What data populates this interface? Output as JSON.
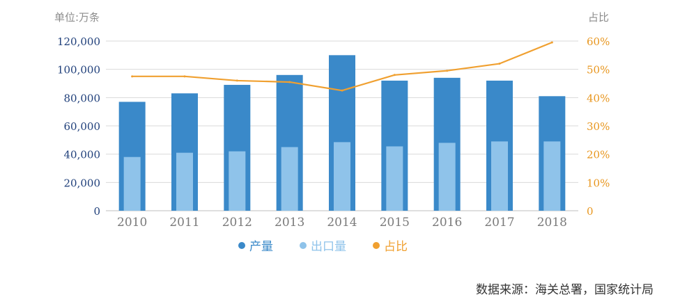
{
  "chart_data": {
    "type": "bar",
    "categories": [
      "2010",
      "2011",
      "2012",
      "2013",
      "2014",
      "2015",
      "2016",
      "2017",
      "2018"
    ],
    "series": [
      {
        "name": "产量",
        "type": "bar",
        "axis": "left",
        "color": "#3a89c9",
        "values": [
          77000,
          83000,
          89000,
          96000,
          110000,
          92000,
          94000,
          92000,
          81000
        ]
      },
      {
        "name": "出口量",
        "type": "bar",
        "axis": "left",
        "color": "#8fc3ea",
        "values": [
          38000,
          41000,
          42000,
          45000,
          48500,
          45500,
          48000,
          49000,
          49000
        ]
      },
      {
        "name": "占比",
        "type": "line",
        "axis": "right",
        "color": "#f0a030",
        "values": [
          47.5,
          47.5,
          46,
          45.5,
          42.5,
          48,
          49.5,
          52,
          59.5
        ]
      }
    ],
    "left_axis": {
      "unit_label": "单位:万条",
      "ylim": [
        0,
        120000
      ],
      "ticks": [
        "0",
        "20,000",
        "40,000",
        "60,000",
        "80,000",
        "100,000",
        "120,000"
      ],
      "tick_values": [
        0,
        20000,
        40000,
        60000,
        80000,
        100000,
        120000
      ]
    },
    "right_axis": {
      "unit_label": "占比",
      "ylim": [
        0,
        60
      ],
      "ticks": [
        "0",
        "10%",
        "20%",
        "30%",
        "40%",
        "50%",
        "60%"
      ],
      "tick_values": [
        0,
        10,
        20,
        30,
        40,
        50,
        60
      ]
    },
    "grid": true,
    "legend_position": "bottom-center"
  },
  "source_text": "数据来源：海关总署，国家统计局",
  "colors": {
    "bar_primary": "#3a89c9",
    "bar_secondary": "#8fc3ea",
    "line": "#f0a030",
    "left_tick_text": "#1f3f7a",
    "right_tick_text": "#e8961e",
    "category_text": "#7a7a7a",
    "grid": "#d9d9d9"
  }
}
